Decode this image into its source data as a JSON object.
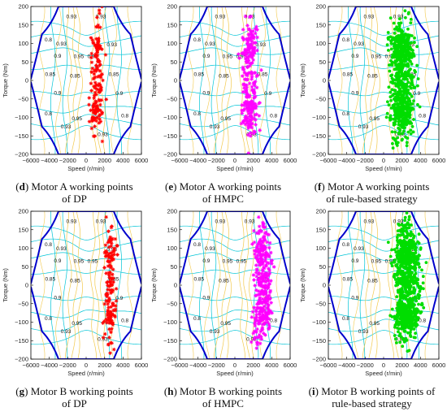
{
  "chart_data": [
    {
      "type": "scatter",
      "panel": "d",
      "caption_letter": "d",
      "caption_lines": [
        "Motor A working points",
        "of DP"
      ],
      "marker_color": "#ff0000",
      "marker_style": "asterisk",
      "points": 150,
      "x_center": 1200,
      "x_spread": 1200,
      "xlabel": "Speed (r/min)",
      "ylabel": "Torque (Nm)",
      "xlim": [
        -6000,
        6000
      ],
      "ylim": [
        -200,
        200
      ]
    },
    {
      "type": "scatter",
      "panel": "e",
      "caption_letter": "e",
      "caption_lines": [
        "Motor A working points",
        "of HMPC"
      ],
      "marker_color": "#ff00ff",
      "marker_style": "asterisk",
      "points": 260,
      "x_center": 1600,
      "x_spread": 1500,
      "xlabel": "Speed (r/min)",
      "ylabel": "Torque (Nm)",
      "xlim": [
        -6000,
        6000
      ],
      "ylim": [
        -200,
        200
      ]
    },
    {
      "type": "scatter",
      "panel": "f",
      "caption_letter": "f",
      "caption_lines": [
        "Motor A working points",
        "of rule-based strategy"
      ],
      "marker_color": "#00dd00",
      "marker_style": "filled-circle",
      "points": 700,
      "x_center": 2000,
      "x_spread": 2200,
      "xlabel": "Speed (r/min)",
      "ylabel": "Torque (Nm)",
      "xlim": [
        -6000,
        6000
      ],
      "ylim": [
        -200,
        200
      ]
    },
    {
      "type": "scatter",
      "panel": "g",
      "caption_letter": "g",
      "caption_lines": [
        "Motor B working points",
        "of DP"
      ],
      "marker_color": "#ff0000",
      "marker_style": "asterisk",
      "points": 150,
      "x_center": 2600,
      "x_spread": 1100,
      "xlabel": "Speed (r/min)",
      "ylabel": "Torque (Nm)",
      "xlim": [
        -6000,
        6000
      ],
      "ylim": [
        -200,
        200
      ]
    },
    {
      "type": "scatter",
      "panel": "h",
      "caption_letter": "h",
      "caption_lines": [
        "Motor B working points",
        "of HMPC"
      ],
      "marker_color": "#ff00ff",
      "marker_style": "asterisk",
      "points": 330,
      "x_center": 3000,
      "x_spread": 1700,
      "xlabel": "Speed (r/min)",
      "ylabel": "Torque (Nm)",
      "xlim": [
        -6000,
        6000
      ],
      "ylim": [
        -200,
        200
      ]
    },
    {
      "type": "scatter",
      "panel": "i",
      "caption_letter": "i",
      "caption_lines": [
        "Motor B working points of",
        "rule-based strategy"
      ],
      "marker_color": "#00dd00",
      "marker_style": "filled-circle",
      "points": 850,
      "x_center": 2500,
      "x_spread": 2400,
      "xlabel": "Speed (r/min)",
      "ylabel": "Torque (Nm)",
      "xlim": [
        -6000,
        6000
      ],
      "ylim": [
        -200,
        200
      ]
    }
  ],
  "axes": {
    "xticks": [
      -6000,
      -4000,
      -2000,
      0,
      2000,
      4000,
      6000
    ],
    "xtick_labels": [
      "−6000",
      "−4000",
      "−2000",
      "0",
      "2000",
      "4000",
      "6000"
    ],
    "yticks": [
      -200,
      -150,
      -100,
      -50,
      0,
      50,
      100,
      150,
      200
    ],
    "ytick_labels": [
      "−200",
      "−150",
      "−100",
      "−50",
      "0",
      "50",
      "100",
      "150",
      "200"
    ]
  },
  "contour_labels": [
    {
      "text": "0.93",
      "x": -1600,
      "y": 168
    },
    {
      "text": "0.93",
      "x": 1600,
      "y": 168
    },
    {
      "text": "0.8",
      "x": -4100,
      "y": 105
    },
    {
      "text": "0.93",
      "x": -2700,
      "y": 95
    },
    {
      "text": "0.9",
      "x": -3100,
      "y": 62
    },
    {
      "text": "0.85",
      "x": -3900,
      "y": 12
    },
    {
      "text": "0.95",
      "x": -800,
      "y": 60
    },
    {
      "text": "0.85",
      "x": -1200,
      "y": 8
    },
    {
      "text": "0.95",
      "x": 700,
      "y": 60
    },
    {
      "text": "0.93",
      "x": 2800,
      "y": 92
    },
    {
      "text": "0.85",
      "x": 3000,
      "y": 12
    },
    {
      "text": "0.9",
      "x": -3100,
      "y": -38
    },
    {
      "text": "0.95",
      "x": -1000,
      "y": -108
    },
    {
      "text": "0.93",
      "x": -2200,
      "y": -130
    },
    {
      "text": "0.9",
      "x": 3600,
      "y": -40
    },
    {
      "text": "0.8",
      "x": -4100,
      "y": -95
    },
    {
      "text": "0.93",
      "x": 1800,
      "y": -150
    },
    {
      "text": "0.8",
      "x": 4200,
      "y": -100
    }
  ],
  "colors": {
    "envelope": "#0000cc",
    "contour_cyan": "#00c4d6",
    "contour_yellow": "#f2c94c",
    "axis": "#000000",
    "tick_text": "#222222",
    "contour_label": "#111111"
  }
}
